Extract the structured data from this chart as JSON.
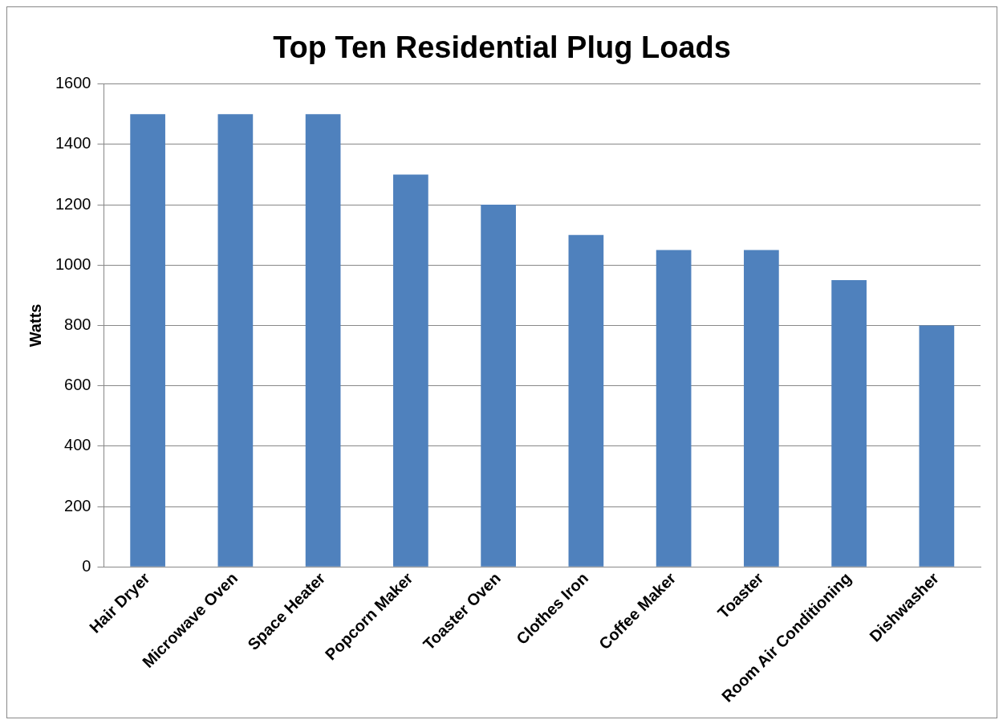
{
  "chart_data": {
    "type": "bar",
    "title": "Top Ten Residential Plug Loads",
    "ylabel": "Watts",
    "categories": [
      "Hair Dryer",
      "Microwave Oven",
      "Space Heater",
      "Popcorn Maker",
      "Toaster Oven",
      "Clothes Iron",
      "Coffee Maker",
      "Toaster",
      "Room Air Conditioning",
      "Dishwasher"
    ],
    "values": [
      1500,
      1500,
      1500,
      1300,
      1200,
      1100,
      1050,
      1050,
      950,
      800
    ],
    "color": "#4f81bd",
    "ylim": [
      0,
      1600
    ],
    "yticks": [
      0,
      200,
      400,
      600,
      800,
      1000,
      1200,
      1400,
      1600
    ],
    "grid": "y",
    "legend": false
  }
}
